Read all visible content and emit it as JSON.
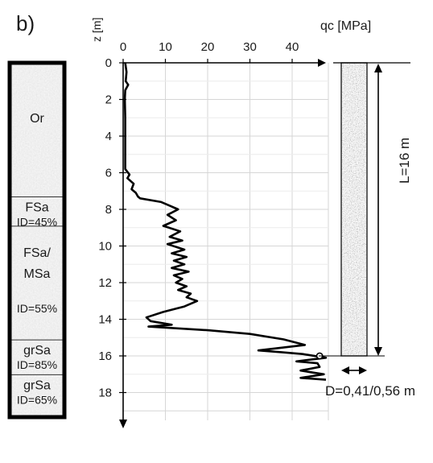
{
  "panel_label": "b)",
  "chart_data": {
    "type": "line",
    "x_axis_label": "qc [MPa]",
    "y_axis_label": "z [m]",
    "x_ticks": [
      0,
      10,
      20,
      30,
      40
    ],
    "y_ticks": [
      0,
      2,
      4,
      6,
      8,
      10,
      12,
      14,
      16,
      18
    ],
    "xlim": [
      0,
      45
    ],
    "ylim": [
      0,
      19.5
    ],
    "y_inverted": true,
    "grid": true,
    "series": [
      {
        "color": "#000000",
        "points": [
          [
            0.5,
            0
          ],
          [
            0.8,
            0.5
          ],
          [
            0.6,
            1.0
          ],
          [
            1.2,
            1.2
          ],
          [
            0.5,
            1.5
          ],
          [
            0.4,
            2.0
          ],
          [
            0.5,
            3.0
          ],
          [
            0.5,
            4.0
          ],
          [
            0.5,
            5.0
          ],
          [
            0.5,
            5.8
          ],
          [
            1.5,
            6.1
          ],
          [
            1.0,
            6.3
          ],
          [
            2.5,
            6.6
          ],
          [
            2.0,
            6.9
          ],
          [
            3.0,
            7.1
          ],
          [
            3.5,
            7.3
          ],
          [
            4.0,
            7.4
          ],
          [
            9.0,
            7.6
          ],
          [
            11.0,
            7.8
          ],
          [
            13.0,
            8.0
          ],
          [
            10.5,
            8.3
          ],
          [
            12.5,
            8.6
          ],
          [
            9.5,
            8.9
          ],
          [
            13.5,
            9.2
          ],
          [
            11.0,
            9.5
          ],
          [
            14.0,
            9.7
          ],
          [
            10.5,
            9.9
          ],
          [
            14.5,
            10.2
          ],
          [
            11.5,
            10.4
          ],
          [
            15.0,
            10.6
          ],
          [
            12.0,
            10.8
          ],
          [
            14.5,
            11.0
          ],
          [
            11.5,
            11.2
          ],
          [
            15.5,
            11.4
          ],
          [
            12.0,
            11.6
          ],
          [
            14.0,
            11.8
          ],
          [
            12.5,
            12.0
          ],
          [
            15.0,
            12.2
          ],
          [
            13.0,
            12.4
          ],
          [
            16.0,
            12.6
          ],
          [
            15.0,
            12.8
          ],
          [
            17.5,
            13.0
          ],
          [
            14.5,
            13.3
          ],
          [
            9.5,
            13.6
          ],
          [
            5.5,
            13.9
          ],
          [
            6.5,
            14.1
          ],
          [
            11.5,
            14.3
          ],
          [
            6.0,
            14.4
          ],
          [
            20.0,
            14.6
          ],
          [
            30.0,
            14.8
          ],
          [
            38.0,
            15.1
          ],
          [
            43.0,
            15.4
          ],
          [
            32.0,
            15.7
          ],
          [
            37.5,
            15.8
          ],
          [
            42.5,
            15.9
          ],
          [
            48.0,
            16.1
          ],
          [
            41.0,
            16.3
          ],
          [
            46.0,
            16.4
          ],
          [
            46.5,
            16.6
          ],
          [
            42.0,
            16.8
          ],
          [
            47.5,
            17.0
          ],
          [
            42.0,
            17.2
          ],
          [
            48.0,
            17.3
          ]
        ],
        "marker_point": [
          46.5,
          16.0
        ]
      }
    ]
  },
  "soil_layers": [
    {
      "name": "Or",
      "density": "",
      "z_top": 0,
      "z_bottom": 7.4
    },
    {
      "name": "FSa",
      "density": "ID=45%",
      "z_top": 7.4,
      "z_bottom": 9.0
    },
    {
      "name": "FSa/\nMSa",
      "density": "ID=55%",
      "z_top": 9.0,
      "z_bottom": 15.2
    },
    {
      "name": "grSa",
      "density": "ID=85%",
      "z_top": 15.2,
      "z_bottom": 17.1
    },
    {
      "name": "grSa",
      "density": "ID=65%",
      "z_top": 17.1,
      "z_bottom": 19.5
    }
  ],
  "pile": {
    "length_label": "L=16 m",
    "diameter_label": "D=0,41/0,56 m",
    "z_top": 0,
    "z_bottom": 16
  }
}
